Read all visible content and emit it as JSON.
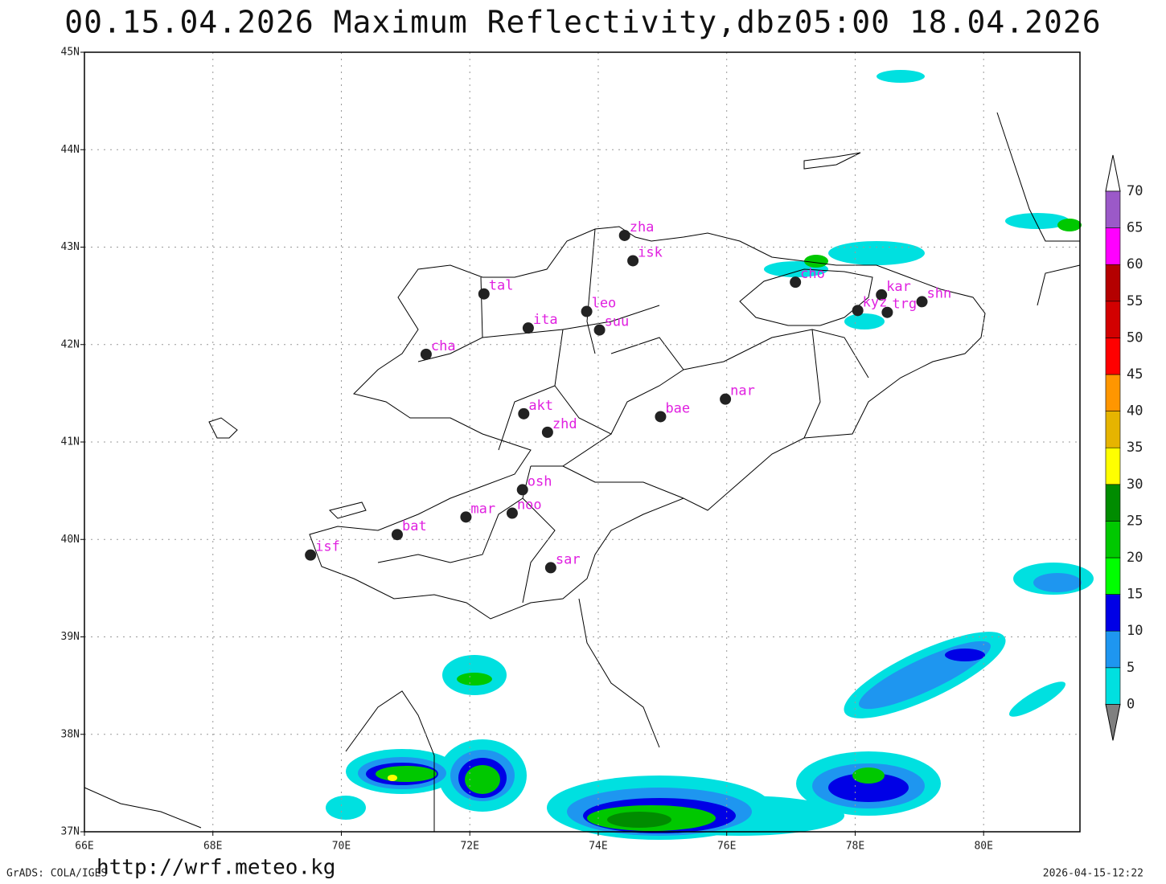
{
  "title": "00.15.04.2026  Maximum  Reflectivity,dbz05:00  18.04.2026",
  "footer": {
    "left": "GrADS: COLA/IGES",
    "center": "http://wrf.meteo.kg",
    "right": "2026-04-15-12:22"
  },
  "map": {
    "lon_range": [
      66,
      81.5
    ],
    "lat_range": [
      37,
      45
    ],
    "grid": true,
    "lon_ticks": [
      {
        "value": 66,
        "label": "66E"
      },
      {
        "value": 68,
        "label": "68E"
      },
      {
        "value": 70,
        "label": "70E"
      },
      {
        "value": 72,
        "label": "72E"
      },
      {
        "value": 74,
        "label": "74E"
      },
      {
        "value": 76,
        "label": "76E"
      },
      {
        "value": 78,
        "label": "78E"
      },
      {
        "value": 80,
        "label": "80E"
      }
    ],
    "lat_ticks": [
      {
        "value": 37,
        "label": "37N"
      },
      {
        "value": 38,
        "label": "38N"
      },
      {
        "value": 39,
        "label": "39N"
      },
      {
        "value": 40,
        "label": "40N"
      },
      {
        "value": 41,
        "label": "41N"
      },
      {
        "value": 42,
        "label": "42N"
      },
      {
        "value": 43,
        "label": "43N"
      },
      {
        "value": 44,
        "label": "44N"
      },
      {
        "value": 45,
        "label": "45N"
      }
    ],
    "station_color": "#e020e0",
    "stations": [
      {
        "name": "zha",
        "lon": 74.41,
        "lat": 43.12
      },
      {
        "name": "isk",
        "lon": 74.54,
        "lat": 42.86
      },
      {
        "name": "tal",
        "lon": 72.22,
        "lat": 42.52
      },
      {
        "name": "leo",
        "lon": 73.82,
        "lat": 42.34
      },
      {
        "name": "ita",
        "lon": 72.91,
        "lat": 42.17
      },
      {
        "name": "suu",
        "lon": 74.02,
        "lat": 42.15
      },
      {
        "name": "cha",
        "lon": 71.32,
        "lat": 41.9
      },
      {
        "name": "akt",
        "lon": 72.84,
        "lat": 41.29
      },
      {
        "name": "zhd",
        "lon": 73.21,
        "lat": 41.1
      },
      {
        "name": "bae",
        "lon": 74.97,
        "lat": 41.26
      },
      {
        "name": "nar",
        "lon": 75.98,
        "lat": 41.44
      },
      {
        "name": "cho",
        "lon": 77.07,
        "lat": 42.64
      },
      {
        "name": "kar",
        "lon": 78.41,
        "lat": 42.51
      },
      {
        "name": "kyz",
        "lon": 78.04,
        "lat": 42.35
      },
      {
        "name": "trg",
        "lon": 78.5,
        "lat": 42.33
      },
      {
        "name": "shn",
        "lon": 79.04,
        "lat": 42.44
      },
      {
        "name": "osh",
        "lon": 72.82,
        "lat": 40.51
      },
      {
        "name": "mar",
        "lon": 71.94,
        "lat": 40.23
      },
      {
        "name": "noo",
        "lon": 72.66,
        "lat": 40.27
      },
      {
        "name": "bat",
        "lon": 70.87,
        "lat": 40.05
      },
      {
        "name": "isf",
        "lon": 69.52,
        "lat": 39.84
      },
      {
        "name": "sar",
        "lon": 73.26,
        "lat": 39.71
      }
    ]
  },
  "colorbar": {
    "levels": [
      0,
      5,
      10,
      15,
      20,
      25,
      30,
      35,
      40,
      45,
      50,
      55,
      60,
      65,
      70
    ],
    "colors": [
      "#00e0e0",
      "#1e96f0",
      "#0000e6",
      "#00ff00",
      "#00c800",
      "#008c00",
      "#ffff00",
      "#e6b400",
      "#ff9600",
      "#ff0000",
      "#d20000",
      "#b40000",
      "#ff00ff",
      "#9b59c8"
    ],
    "under_color": "#808080",
    "over_color": "#ffffff"
  }
}
